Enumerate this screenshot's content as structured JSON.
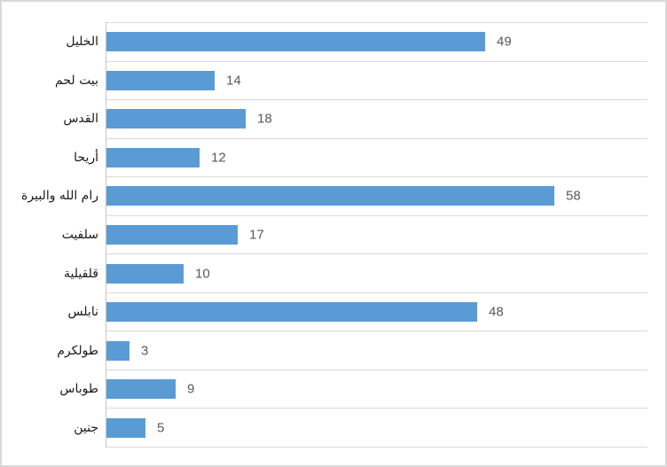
{
  "chart_data": {
    "type": "bar",
    "orientation": "horizontal",
    "title": "",
    "xlabel": "",
    "ylabel": "",
    "categories": [
      "الخليل",
      "بيت لحم",
      "القدس",
      "أريحا",
      "رام الله والبيرة",
      "سلفيت",
      "قلقيلية",
      "نابلس",
      "طولكرم",
      "طوباس",
      "جنين"
    ],
    "values": [
      49,
      14,
      18,
      12,
      58,
      17,
      10,
      48,
      3,
      9,
      5
    ],
    "xlim": [
      0,
      70
    ],
    "data_labels": true,
    "legend": "none",
    "grid": "category-separators-only"
  },
  "colors": {
    "bar_fill": "#5B9BD5",
    "gridline": "#D9D9D9",
    "axis_line": "#C6C6C6",
    "value_label": "#595959",
    "category_label": "#1A1A1A",
    "chart_border": "#D9D9D9",
    "background": "#FFFFFF"
  }
}
